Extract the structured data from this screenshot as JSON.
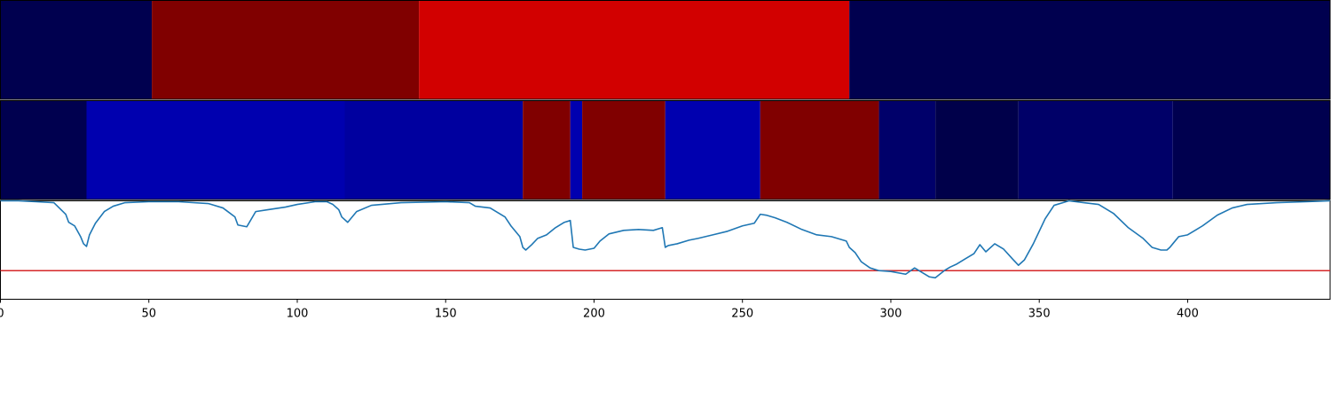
{
  "chart_data": [
    {
      "type": "heatmap",
      "colormap": "seismic",
      "xlim": [
        0,
        448
      ],
      "segments": [
        {
          "start": 0,
          "end": 51,
          "color": "#00004f"
        },
        {
          "start": 51,
          "end": 141,
          "color": "#800000"
        },
        {
          "start": 141,
          "end": 286,
          "color": "#d20000"
        },
        {
          "start": 286,
          "end": 448,
          "color": "#00004f"
        }
      ]
    },
    {
      "type": "heatmap",
      "colormap": "seismic",
      "xlim": [
        0,
        448
      ],
      "segments": [
        {
          "start": 0,
          "end": 29,
          "color": "#00004f"
        },
        {
          "start": 29,
          "end": 116,
          "color": "#0000af"
        },
        {
          "start": 116,
          "end": 176,
          "color": "#00009f"
        },
        {
          "start": 176,
          "end": 192,
          "color": "#800000"
        },
        {
          "start": 192,
          "end": 196,
          "color": "#0000af"
        },
        {
          "start": 196,
          "end": 224,
          "color": "#800000"
        },
        {
          "start": 224,
          "end": 256,
          "color": "#0000af"
        },
        {
          "start": 256,
          "end": 296,
          "color": "#800000"
        },
        {
          "start": 296,
          "end": 315,
          "color": "#00006a"
        },
        {
          "start": 315,
          "end": 343,
          "color": "#00004a"
        },
        {
          "start": 343,
          "end": 395,
          "color": "#000068"
        },
        {
          "start": 395,
          "end": 448,
          "color": "#00004f"
        }
      ]
    },
    {
      "type": "line",
      "xlim": [
        0,
        448
      ],
      "ylim": [
        -0.1,
        1.0
      ],
      "threshold": 0.22,
      "threshold_color": "#d62728",
      "line_color": "#1f77b4",
      "xticks": [
        0,
        50,
        100,
        150,
        200,
        250,
        300,
        350,
        400
      ],
      "xtick_labels": [
        "0",
        "50",
        "100",
        "150",
        "200",
        "250",
        "300",
        "350",
        "400"
      ],
      "x": [
        0,
        6,
        12,
        18,
        22,
        23,
        25,
        27,
        28,
        29,
        30,
        32,
        35,
        38,
        42,
        50,
        60,
        70,
        71,
        75,
        79,
        80,
        83,
        86,
        90,
        96,
        100,
        106,
        110,
        112,
        114,
        115,
        117,
        120,
        125,
        135,
        150,
        158,
        160,
        165,
        170,
        172,
        175,
        176,
        177,
        179,
        181,
        184,
        187,
        190,
        192,
        193,
        195,
        197,
        200,
        202,
        205,
        210,
        215,
        220,
        223,
        224,
        225,
        228,
        232,
        235,
        240,
        245,
        250,
        254,
        256,
        258,
        261,
        265,
        270,
        275,
        280,
        285,
        286,
        288,
        290,
        293,
        296,
        300,
        305,
        308,
        313,
        315,
        318,
        320,
        322,
        325,
        328,
        330,
        332,
        335,
        338,
        341,
        343,
        345,
        348,
        352,
        355,
        360,
        365,
        370,
        375,
        380,
        385,
        388,
        391,
        393,
        394,
        395,
        397,
        400,
        403,
        405,
        410,
        415,
        420,
        430,
        440,
        448
      ],
      "y": [
        1.0,
        1.0,
        0.99,
        0.98,
        0.85,
        0.76,
        0.72,
        0.6,
        0.52,
        0.49,
        0.62,
        0.75,
        0.88,
        0.94,
        0.98,
        0.99,
        0.99,
        0.97,
        0.96,
        0.92,
        0.82,
        0.73,
        0.71,
        0.88,
        0.9,
        0.93,
        0.96,
        0.99,
        0.99,
        0.96,
        0.9,
        0.82,
        0.76,
        0.88,
        0.95,
        0.98,
        0.99,
        0.98,
        0.94,
        0.92,
        0.82,
        0.72,
        0.6,
        0.48,
        0.45,
        0.51,
        0.58,
        0.62,
        0.7,
        0.76,
        0.78,
        0.48,
        0.46,
        0.45,
        0.47,
        0.55,
        0.63,
        0.67,
        0.68,
        0.67,
        0.7,
        0.48,
        0.5,
        0.52,
        0.56,
        0.58,
        0.62,
        0.66,
        0.72,
        0.75,
        0.85,
        0.84,
        0.81,
        0.76,
        0.68,
        0.62,
        0.6,
        0.55,
        0.48,
        0.42,
        0.32,
        0.25,
        0.22,
        0.21,
        0.18,
        0.25,
        0.15,
        0.14,
        0.22,
        0.26,
        0.29,
        0.35,
        0.41,
        0.51,
        0.43,
        0.52,
        0.46,
        0.35,
        0.28,
        0.34,
        0.52,
        0.8,
        0.95,
        1.0,
        0.98,
        0.96,
        0.86,
        0.7,
        0.58,
        0.48,
        0.45,
        0.45,
        0.48,
        0.52,
        0.6,
        0.62,
        0.68,
        0.72,
        0.84,
        0.92,
        0.96,
        0.98,
        0.99,
        1.0
      ]
    }
  ]
}
